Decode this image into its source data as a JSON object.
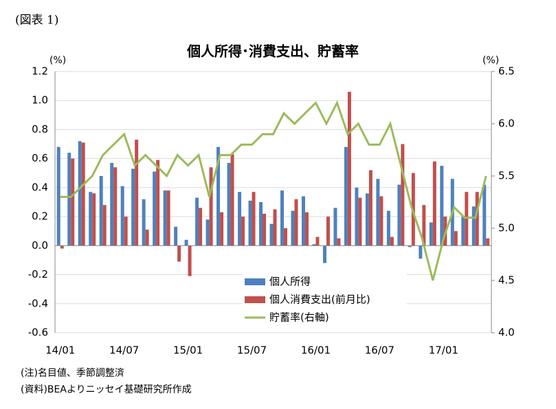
{
  "chart_data": {
    "type": "bar",
    "figure_label": "(図表 1)",
    "title": "個人所得･消費支出、貯蓄率",
    "y_unit": "(%)",
    "y2_unit": "(%)",
    "notes": [
      "(注)名目値、季節調整済",
      "(資料)BEAよりニッセイ基礎研究所作成"
    ],
    "categories": [
      "14/01",
      null,
      null,
      null,
      null,
      null,
      "14/07",
      null,
      null,
      null,
      null,
      null,
      "15/01",
      null,
      null,
      null,
      null,
      null,
      "15/07",
      null,
      null,
      null,
      null,
      null,
      "16/01",
      null,
      null,
      null,
      null,
      null,
      "16/07",
      null,
      null,
      null,
      null,
      null,
      "17/01",
      null,
      null,
      null,
      null
    ],
    "series": [
      {
        "name": "個人所得",
        "color": "#4f81bd",
        "type": "bar",
        "values": [
          0.68,
          0.64,
          0.72,
          0.37,
          0.48,
          0.57,
          0.41,
          0.53,
          0.32,
          0.51,
          0.38,
          0.13,
          0.04,
          0.33,
          0.18,
          0.68,
          0.57,
          0.37,
          0.31,
          0.3,
          0.15,
          0.38,
          0.24,
          0.34,
          0.01,
          -0.12,
          0.26,
          0.68,
          0.4,
          0.36,
          0.46,
          0.24,
          0.42,
          -0.01,
          -0.09,
          0.16,
          0.55,
          0.46,
          0.2,
          0.27,
          0.42
        ]
      },
      {
        "name": "個人消費支出(前月比)",
        "color": "#c0504d",
        "type": "bar",
        "values": [
          -0.02,
          0.6,
          0.71,
          0.36,
          0.28,
          0.54,
          0.2,
          0.73,
          0.11,
          0.59,
          0.38,
          -0.11,
          -0.21,
          0.26,
          0.54,
          0.23,
          0.63,
          0.2,
          0.37,
          0.22,
          0.25,
          0.12,
          0.32,
          0.23,
          0.06,
          0.2,
          0.05,
          1.06,
          0.33,
          0.52,
          0.34,
          0.06,
          0.7,
          0.5,
          0.28,
          0.58,
          0.2,
          0.1,
          0.37,
          0.37,
          0.05
        ]
      },
      {
        "name": "貯蓄率(右軸)",
        "color": "#9bbb59",
        "type": "line",
        "axis": "y2",
        "values": [
          5.3,
          5.3,
          5.4,
          5.5,
          5.7,
          5.8,
          5.9,
          5.6,
          5.7,
          5.6,
          5.5,
          5.7,
          5.6,
          5.7,
          5.3,
          5.7,
          5.7,
          5.8,
          5.8,
          5.9,
          5.9,
          6.1,
          6.0,
          6.1,
          6.2,
          6.0,
          6.2,
          5.9,
          6.0,
          5.8,
          5.8,
          6.0,
          5.6,
          5.2,
          4.9,
          4.5,
          4.9,
          5.2,
          5.1,
          5.1,
          5.5
        ]
      }
    ],
    "ylim": [
      -0.6,
      1.2
    ],
    "yticks": [
      -0.6,
      -0.4,
      -0.2,
      {
        "value": 0,
        "label": "0.0"
      },
      0.2,
      0.4,
      0.6,
      0.8,
      {
        "value": 1,
        "label": "1.0"
      },
      1.2
    ],
    "y2lim": [
      4.0,
      6.5
    ],
    "y2ticks": [
      {
        "value": 4,
        "label": "4.0"
      },
      4.5,
      {
        "value": 5,
        "label": "5.0"
      },
      5.5,
      {
        "value": 6,
        "label": "6.0"
      },
      6.5
    ],
    "grid": true
  }
}
